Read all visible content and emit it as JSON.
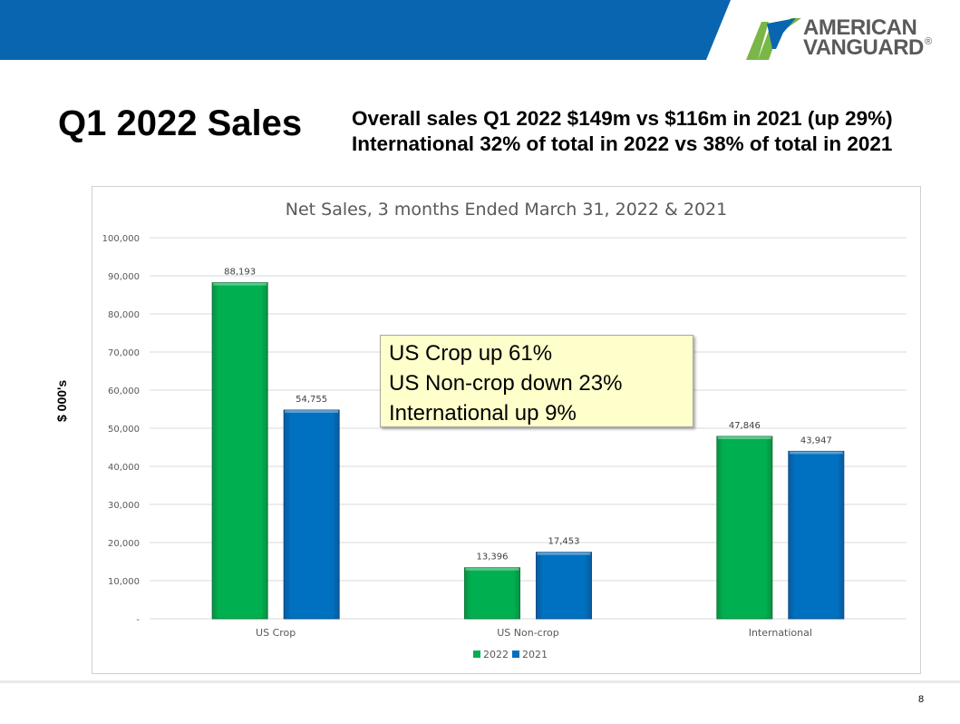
{
  "header": {
    "title": "Q1 2022 Sales",
    "subtitle_line1": "Overall sales Q1 2022 $149m vs $116m in 2021 (up 29%)",
    "subtitle_line2": "International 32% of total in 2022 vs 38% of total in 2021"
  },
  "logo": {
    "line1": "AMERICAN",
    "line2": "VANGUARD",
    "reg": "®"
  },
  "colors": {
    "banner": "#0a65b0",
    "series_2022": "#00b050",
    "series_2021": "#0070c0",
    "logo_green": "#7ab648",
    "logo_blue": "#0a65b0"
  },
  "y_axis_title": "$ 000's",
  "callout": {
    "lines": [
      "US Crop up 61%",
      "US Non-crop down 23%",
      "International up 9%"
    ]
  },
  "page_number": "8",
  "chart_data": {
    "type": "bar",
    "title": "Net Sales, 3 months Ended March 31, 2022 & 2021",
    "categories": [
      "US Crop",
      "US Non-crop",
      "International"
    ],
    "series": [
      {
        "name": "2022",
        "values": [
          88193,
          13396,
          47846
        ],
        "labels": [
          "88,193",
          "13,396",
          "47,846"
        ]
      },
      {
        "name": "2021",
        "values": [
          54755,
          17453,
          43947
        ],
        "labels": [
          "54,755",
          "17,453",
          "43,947"
        ]
      }
    ],
    "ylim": [
      0,
      100000
    ],
    "yticks": [
      0,
      10000,
      20000,
      30000,
      40000,
      50000,
      60000,
      70000,
      80000,
      90000,
      100000
    ],
    "ytick_labels": [
      "-",
      "10,000",
      "20,000",
      "30,000",
      "40,000",
      "50,000",
      "60,000",
      "70,000",
      "80,000",
      "90,000",
      "100,000"
    ],
    "grid": true,
    "legend": "bottom"
  }
}
